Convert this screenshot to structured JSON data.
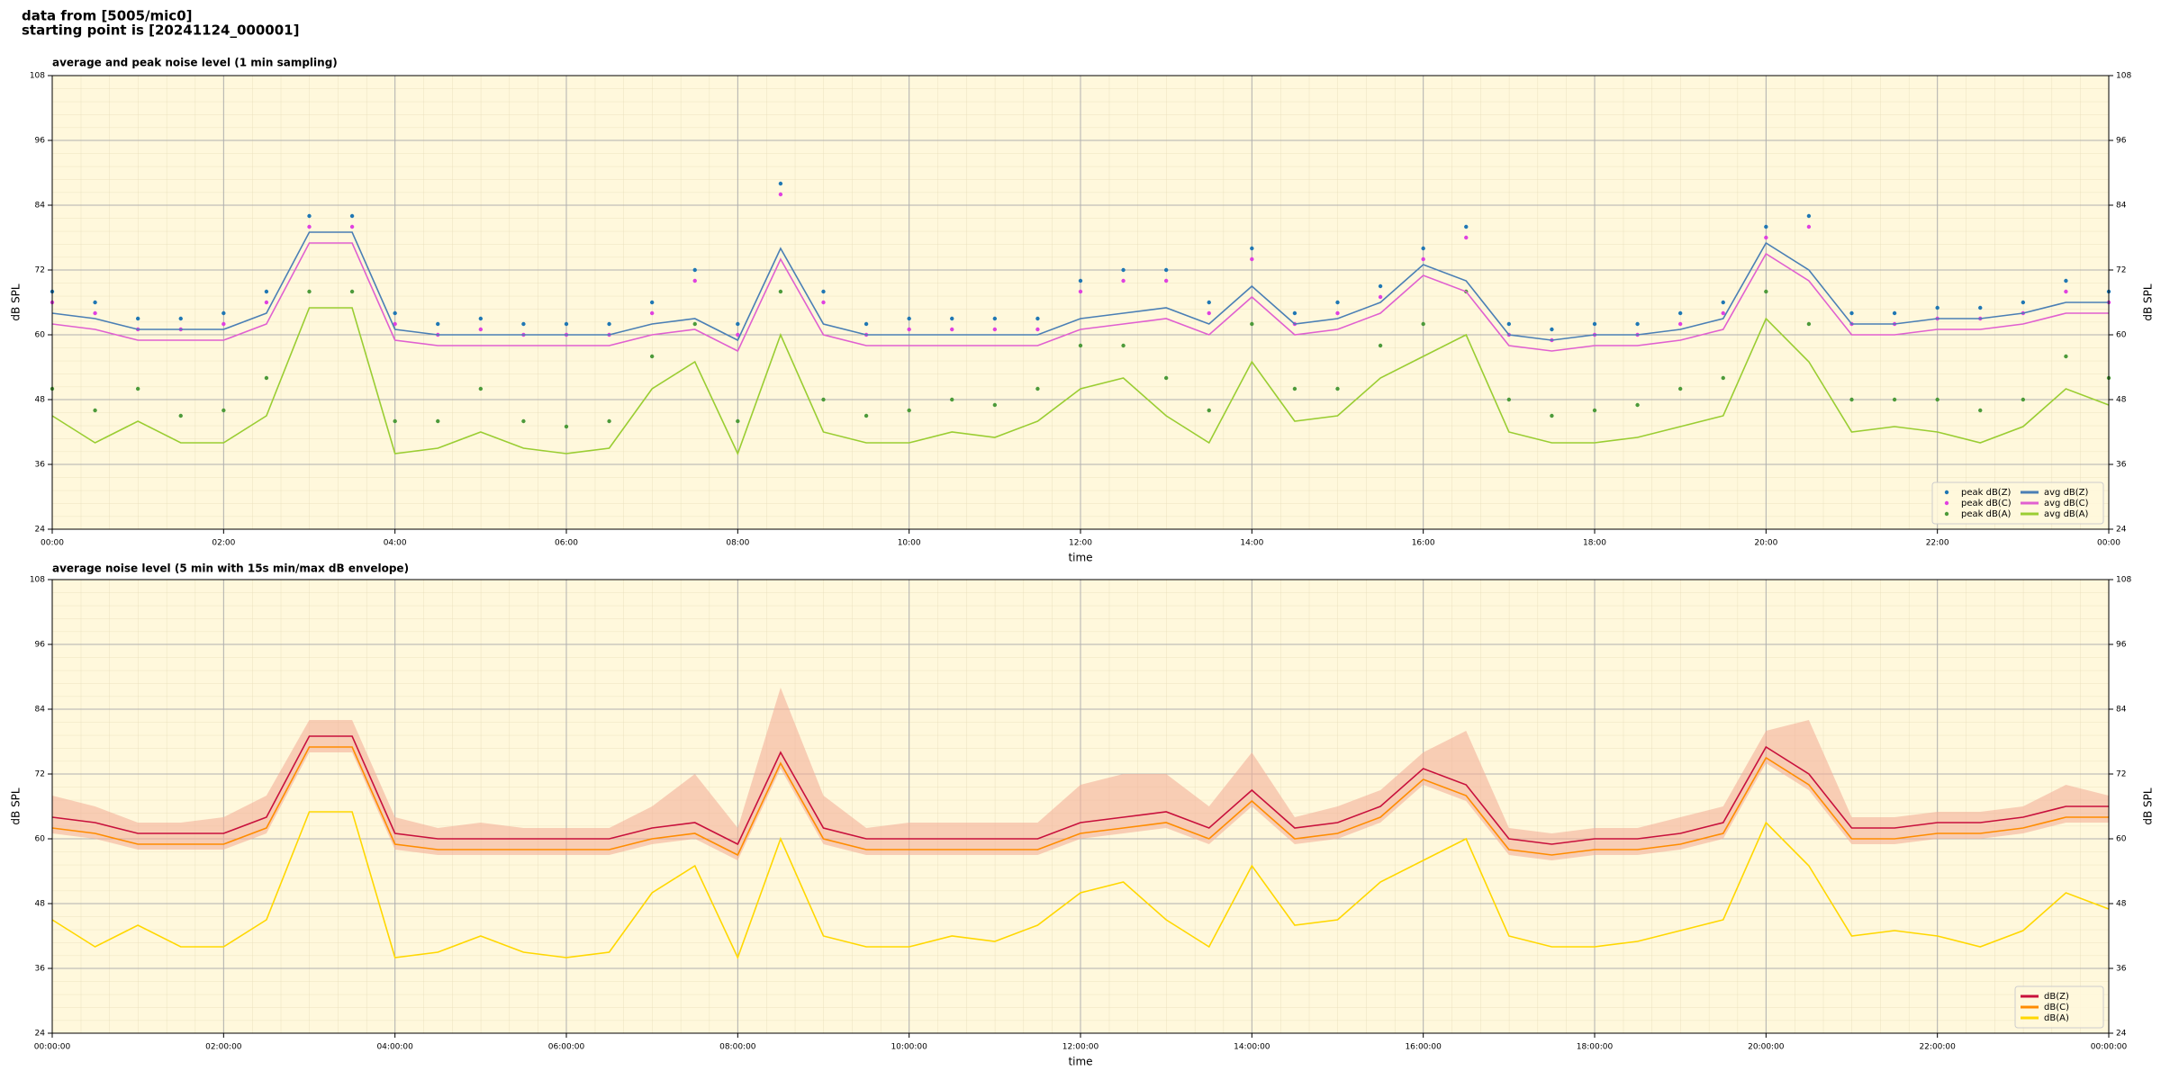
{
  "header": [
    "data from [5005/mic0]",
    "starting point is [20241124_000001]"
  ],
  "chart_data": [
    {
      "type": "line",
      "title": "average and peak noise level (1 min sampling)",
      "xlabel": "time",
      "ylabel": "dB SPL",
      "xlim": [
        0,
        1440
      ],
      "xticks": [
        {
          "value": 0,
          "label": "00:00"
        },
        {
          "value": 120,
          "label": "02:00"
        },
        {
          "value": 240,
          "label": "04:00"
        },
        {
          "value": 360,
          "label": "06:00"
        },
        {
          "value": 480,
          "label": "08:00"
        },
        {
          "value": 600,
          "label": "10:00"
        },
        {
          "value": 720,
          "label": "12:00"
        },
        {
          "value": 840,
          "label": "14:00"
        },
        {
          "value": 960,
          "label": "16:00"
        },
        {
          "value": 1080,
          "label": "18:00"
        },
        {
          "value": 1200,
          "label": "20:00"
        },
        {
          "value": 1320,
          "label": "22:00"
        },
        {
          "value": 1440,
          "label": "00:00"
        }
      ],
      "ylim": [
        24,
        108
      ],
      "yticks": [
        24,
        36,
        48,
        60,
        72,
        84,
        96,
        108
      ],
      "grid": true,
      "legend": "lower right",
      "legend_columns": 2,
      "x": [
        0,
        30,
        60,
        90,
        120,
        150,
        180,
        210,
        240,
        270,
        300,
        330,
        360,
        390,
        420,
        450,
        480,
        510,
        540,
        570,
        600,
        630,
        660,
        690,
        720,
        750,
        780,
        810,
        840,
        870,
        900,
        930,
        960,
        990,
        1020,
        1050,
        1080,
        1110,
        1140,
        1170,
        1200,
        1230,
        1260,
        1290,
        1320,
        1350,
        1380,
        1410,
        1440
      ],
      "series": [
        {
          "name": "peak dB(Z)",
          "type": "scatter",
          "color": "#1f77b4",
          "values": [
            68,
            66,
            63,
            63,
            64,
            68,
            82,
            82,
            64,
            62,
            63,
            62,
            62,
            62,
            66,
            72,
            62,
            88,
            68,
            62,
            63,
            63,
            63,
            63,
            70,
            72,
            72,
            66,
            76,
            64,
            66,
            69,
            76,
            80,
            62,
            61,
            62,
            62,
            64,
            66,
            80,
            82,
            64,
            64,
            65,
            65,
            66,
            70,
            68
          ]
        },
        {
          "name": "peak dB(C)",
          "type": "scatter",
          "color": "#e040e0",
          "values": [
            66,
            64,
            61,
            61,
            62,
            66,
            80,
            80,
            62,
            60,
            61,
            60,
            60,
            60,
            64,
            70,
            60,
            86,
            66,
            60,
            61,
            61,
            61,
            61,
            68,
            70,
            70,
            64,
            74,
            62,
            64,
            67,
            74,
            78,
            60,
            59,
            60,
            60,
            62,
            64,
            78,
            80,
            62,
            62,
            63,
            63,
            64,
            68,
            66
          ]
        },
        {
          "name": "peak dB(A)",
          "type": "scatter",
          "color": "#4c9a3a",
          "values": [
            50,
            46,
            50,
            45,
            46,
            52,
            68,
            68,
            44,
            44,
            50,
            44,
            43,
            44,
            56,
            62,
            44,
            68,
            48,
            45,
            46,
            48,
            47,
            50,
            58,
            58,
            52,
            46,
            62,
            50,
            50,
            58,
            62,
            68,
            48,
            45,
            46,
            47,
            50,
            52,
            68,
            62,
            48,
            48,
            48,
            46,
            48,
            56,
            52
          ]
        },
        {
          "name": "avg dB(Z)",
          "type": "line",
          "color": "#4a7fb5",
          "values": [
            64,
            63,
            61,
            61,
            61,
            64,
            79,
            79,
            61,
            60,
            60,
            60,
            60,
            60,
            62,
            63,
            59,
            76,
            62,
            60,
            60,
            60,
            60,
            60,
            63,
            64,
            65,
            62,
            69,
            62,
            63,
            66,
            73,
            70,
            60,
            59,
            60,
            60,
            61,
            63,
            77,
            72,
            62,
            62,
            63,
            63,
            64,
            66,
            66
          ]
        },
        {
          "name": "avg dB(C)",
          "type": "line",
          "color": "#e060d0",
          "values": [
            62,
            61,
            59,
            59,
            59,
            62,
            77,
            77,
            59,
            58,
            58,
            58,
            58,
            58,
            60,
            61,
            57,
            74,
            60,
            58,
            58,
            58,
            58,
            58,
            61,
            62,
            63,
            60,
            67,
            60,
            61,
            64,
            71,
            68,
            58,
            57,
            58,
            58,
            59,
            61,
            75,
            70,
            60,
            60,
            61,
            61,
            62,
            64,
            64
          ]
        },
        {
          "name": "avg dB(A)",
          "type": "line",
          "color": "#9acd32",
          "values": [
            45,
            40,
            44,
            40,
            40,
            45,
            65,
            65,
            38,
            39,
            42,
            39,
            38,
            39,
            50,
            55,
            38,
            60,
            42,
            40,
            40,
            42,
            41,
            44,
            50,
            52,
            45,
            40,
            55,
            44,
            45,
            52,
            56,
            60,
            42,
            40,
            40,
            41,
            43,
            45,
            63,
            55,
            42,
            43,
            42,
            40,
            43,
            50,
            47
          ]
        }
      ]
    },
    {
      "type": "line",
      "title": "average noise level (5 min with 15s min/max dB envelope)",
      "xlabel": "time",
      "ylabel": "dB SPL",
      "xlim": [
        0,
        1440
      ],
      "xticks": [
        {
          "value": 0,
          "label": "00:00:00"
        },
        {
          "value": 120,
          "label": "02:00:00"
        },
        {
          "value": 240,
          "label": "04:00:00"
        },
        {
          "value": 360,
          "label": "06:00:00"
        },
        {
          "value": 480,
          "label": "08:00:00"
        },
        {
          "value": 600,
          "label": "10:00:00"
        },
        {
          "value": 720,
          "label": "12:00:00"
        },
        {
          "value": 840,
          "label": "14:00:00"
        },
        {
          "value": 960,
          "label": "16:00:00"
        },
        {
          "value": 1080,
          "label": "18:00:00"
        },
        {
          "value": 1200,
          "label": "20:00:00"
        },
        {
          "value": 1320,
          "label": "22:00:00"
        },
        {
          "value": 1440,
          "label": "00:00:00"
        }
      ],
      "ylim": [
        24,
        108
      ],
      "yticks": [
        24,
        36,
        48,
        60,
        72,
        84,
        96,
        108
      ],
      "grid": true,
      "legend": "lower right",
      "legend_columns": 1,
      "x": [
        0,
        30,
        60,
        90,
        120,
        150,
        180,
        210,
        240,
        270,
        300,
        330,
        360,
        390,
        420,
        450,
        480,
        510,
        540,
        570,
        600,
        630,
        660,
        690,
        720,
        750,
        780,
        810,
        840,
        870,
        900,
        930,
        960,
        990,
        1020,
        1050,
        1080,
        1110,
        1140,
        1170,
        1200,
        1230,
        1260,
        1290,
        1320,
        1350,
        1380,
        1410,
        1440
      ],
      "envelope": {
        "color": "#f4b09a",
        "max": [
          68,
          66,
          63,
          63,
          64,
          68,
          82,
          82,
          64,
          62,
          63,
          62,
          62,
          62,
          66,
          72,
          62,
          88,
          68,
          62,
          63,
          63,
          63,
          63,
          70,
          72,
          72,
          66,
          76,
          64,
          66,
          69,
          76,
          80,
          62,
          61,
          62,
          62,
          64,
          66,
          80,
          82,
          64,
          64,
          65,
          65,
          66,
          70,
          68
        ],
        "min": [
          61,
          60,
          58,
          58,
          58,
          61,
          76,
          76,
          58,
          57,
          57,
          57,
          57,
          57,
          59,
          60,
          56,
          73,
          59,
          57,
          57,
          57,
          57,
          57,
          60,
          61,
          62,
          59,
          66,
          59,
          60,
          63,
          70,
          67,
          57,
          56,
          57,
          57,
          58,
          60,
          74,
          69,
          59,
          59,
          60,
          60,
          61,
          63,
          63
        ]
      },
      "series": [
        {
          "name": "dB(Z)",
          "type": "line",
          "color": "#c8103c",
          "values": [
            64,
            63,
            61,
            61,
            61,
            64,
            79,
            79,
            61,
            60,
            60,
            60,
            60,
            60,
            62,
            63,
            59,
            76,
            62,
            60,
            60,
            60,
            60,
            60,
            63,
            64,
            65,
            62,
            69,
            62,
            63,
            66,
            73,
            70,
            60,
            59,
            60,
            60,
            61,
            63,
            77,
            72,
            62,
            62,
            63,
            63,
            64,
            66,
            66
          ]
        },
        {
          "name": "dB(C)",
          "type": "line",
          "color": "#ff8c00",
          "values": [
            62,
            61,
            59,
            59,
            59,
            62,
            77,
            77,
            59,
            58,
            58,
            58,
            58,
            58,
            60,
            61,
            57,
            74,
            60,
            58,
            58,
            58,
            58,
            58,
            61,
            62,
            63,
            60,
            67,
            60,
            61,
            64,
            71,
            68,
            58,
            57,
            58,
            58,
            59,
            61,
            75,
            70,
            60,
            60,
            61,
            61,
            62,
            64,
            64
          ]
        },
        {
          "name": "dB(A)",
          "type": "line",
          "color": "#ffd700",
          "values": [
            45,
            40,
            44,
            40,
            40,
            45,
            65,
            65,
            38,
            39,
            42,
            39,
            38,
            39,
            50,
            55,
            38,
            60,
            42,
            40,
            40,
            42,
            41,
            44,
            50,
            52,
            45,
            40,
            55,
            44,
            45,
            52,
            56,
            60,
            42,
            40,
            40,
            41,
            43,
            45,
            63,
            55,
            42,
            43,
            42,
            40,
            43,
            50,
            47
          ]
        }
      ]
    }
  ]
}
